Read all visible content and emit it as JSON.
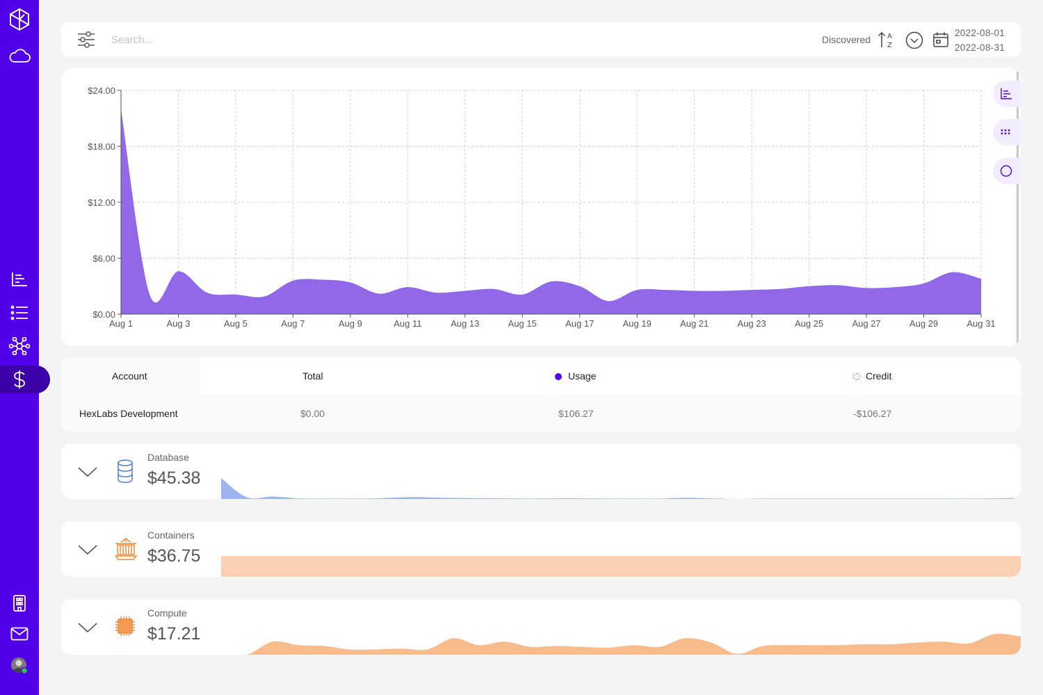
{
  "sidebar": {
    "top_icons": [
      "hexlabs-logo-icon",
      "cloud-icon"
    ],
    "nav_icons": [
      "bar-chart-icon",
      "list-icon",
      "network-icon",
      "dollar-icon"
    ],
    "active": "dollar-icon",
    "bottom_icons": [
      "building-icon",
      "mail-icon",
      "user-avatar"
    ]
  },
  "toolbar": {
    "search_placeholder": "Search...",
    "sort_label": "Discovered",
    "date_start": "2022-08-01",
    "date_end": "2022-08-31"
  },
  "chart_data": {
    "type": "area",
    "title": "",
    "xlabel": "",
    "ylabel": "",
    "ylim": [
      0,
      24
    ],
    "y_ticks": [
      "$0.00",
      "$6.00",
      "$12.00",
      "$18.00",
      "$24.00"
    ],
    "x_tick_labels": [
      "Aug 1",
      "Aug 3",
      "Aug 5",
      "Aug 7",
      "Aug 9",
      "Aug 11",
      "Aug 13",
      "Aug 15",
      "Aug 17",
      "Aug 19",
      "Aug 21",
      "Aug 23",
      "Aug 25",
      "Aug 27",
      "Aug 29",
      "Aug 31"
    ],
    "x": [
      "Aug 1",
      "Aug 2",
      "Aug 3",
      "Aug 4",
      "Aug 5",
      "Aug 6",
      "Aug 7",
      "Aug 8",
      "Aug 9",
      "Aug 10",
      "Aug 11",
      "Aug 12",
      "Aug 13",
      "Aug 14",
      "Aug 15",
      "Aug 16",
      "Aug 17",
      "Aug 18",
      "Aug 19",
      "Aug 20",
      "Aug 21",
      "Aug 22",
      "Aug 23",
      "Aug 24",
      "Aug 25",
      "Aug 26",
      "Aug 27",
      "Aug 28",
      "Aug 29",
      "Aug 30",
      "Aug 31"
    ],
    "series": [
      {
        "name": "Usage",
        "color": "#9068e8",
        "values": [
          22.0,
          2.1,
          4.6,
          2.3,
          2.1,
          1.9,
          3.6,
          3.7,
          3.4,
          2.2,
          2.9,
          2.3,
          2.5,
          2.7,
          2.1,
          3.5,
          3.0,
          1.4,
          2.6,
          2.6,
          2.5,
          2.5,
          2.6,
          2.7,
          3.0,
          3.1,
          2.8,
          2.9,
          3.3,
          4.5,
          3.8
        ]
      }
    ],
    "grid": true,
    "controls": [
      "bar-chart-icon",
      "grid-dots-icon",
      "pie-circle-icon"
    ]
  },
  "table": {
    "headers": {
      "account": "Account",
      "total": "Total",
      "usage": "Usage",
      "credit": "Credit"
    },
    "usage_dot_color": "#5200e8",
    "credit_dot_color": "#e0607a",
    "rows": [
      {
        "account": "HexLabs Development",
        "total": "$0.00",
        "usage": "$106.27",
        "credit": "-$106.27"
      }
    ]
  },
  "services": [
    {
      "name": "Database",
      "value": "$45.38",
      "icon": "database-icon",
      "color": "#9db4f0",
      "stroke": "#4a78e0",
      "spark": [
        1.0,
        0.08,
        0.12,
        0.03,
        0.02,
        0.02,
        0.03,
        0.08,
        0.08,
        0.05,
        0.04,
        0.03,
        0.02,
        0.03,
        0.03,
        0.02,
        0.02,
        0.02,
        0.06,
        0.03,
        0.0,
        0.02,
        0.02,
        0.02,
        0.02,
        0.02,
        0.02,
        0.02,
        0.02,
        0.02,
        0.03,
        0.05
      ]
    },
    {
      "name": "Containers",
      "value": "$36.75",
      "icon": "container-ship-icon",
      "color": "#fcd0b3",
      "stroke": "#f59a52",
      "spark": [
        1.0,
        1.0,
        1.0,
        1.0,
        1.0,
        1.0,
        1.0,
        1.0,
        1.0,
        1.0,
        1.0,
        1.0,
        1.0,
        1.0,
        1.0,
        1.0,
        1.0,
        1.0,
        1.0,
        1.0,
        1.0,
        1.0,
        1.0,
        1.0,
        1.0,
        1.0,
        1.0,
        1.0,
        1.0,
        1.0,
        1.0
      ]
    },
    {
      "name": "Compute",
      "value": "$17.21",
      "icon": "cpu-chip-icon",
      "color": "#f8bb8c",
      "stroke": "#f59a52",
      "spark": [
        0.0,
        0.0,
        0.75,
        0.55,
        0.5,
        0.3,
        0.3,
        0.35,
        0.3,
        0.95,
        0.55,
        0.75,
        0.45,
        0.5,
        0.45,
        0.4,
        0.55,
        0.45,
        0.95,
        0.7,
        0.05,
        0.5,
        0.55,
        0.55,
        0.55,
        0.6,
        0.6,
        0.7,
        0.75,
        0.65,
        1.2,
        1.05
      ]
    }
  ]
}
